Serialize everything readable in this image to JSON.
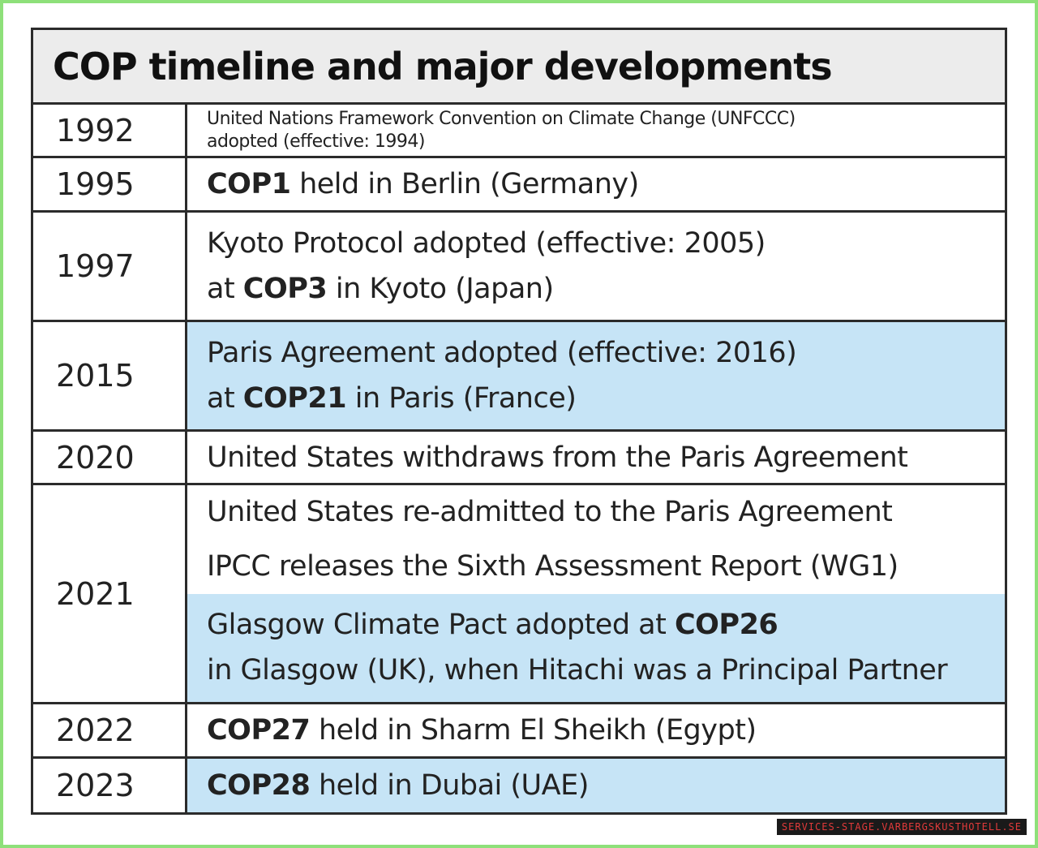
{
  "title": "COP timeline and major developments",
  "rows": [
    {
      "year": "1992",
      "events": [
        {
          "highlight": false,
          "size": "small",
          "lines": [
            {
              "pre": "United Nations Framework Convention on Climate Change (UNFCCC)",
              "bold": "",
              "post": ""
            },
            {
              "pre": "adopted (effective: 1994)",
              "bold": "",
              "post": ""
            }
          ]
        }
      ]
    },
    {
      "year": "1995",
      "events": [
        {
          "highlight": false,
          "size": "large",
          "lines": [
            {
              "pre": "",
              "bold": "COP1",
              "post": " held in Berlin (Germany)"
            }
          ]
        }
      ]
    },
    {
      "year": "1997",
      "events": [
        {
          "highlight": false,
          "size": "large",
          "lines": [
            {
              "pre": "Kyoto Protocol adopted (effective: 2005)",
              "bold": "",
              "post": ""
            },
            {
              "pre": "at ",
              "bold": "COP3",
              "post": " in Kyoto (Japan)"
            }
          ]
        }
      ]
    },
    {
      "year": "2015",
      "events": [
        {
          "highlight": true,
          "size": "large",
          "lines": [
            {
              "pre": "Paris Agreement adopted (effective: 2016)",
              "bold": "",
              "post": ""
            },
            {
              "pre": "at ",
              "bold": "COP21",
              "post": " in Paris (France)"
            }
          ]
        }
      ]
    },
    {
      "year": "2020",
      "events": [
        {
          "highlight": false,
          "size": "large",
          "lines": [
            {
              "pre": "United States withdraws from the Paris Agreement",
              "bold": "",
              "post": ""
            }
          ]
        }
      ]
    },
    {
      "year": "2021",
      "events": [
        {
          "highlight": false,
          "size": "large",
          "lines": [
            {
              "pre": "United States re-admitted to the Paris Agreement",
              "bold": "",
              "post": ""
            }
          ]
        },
        {
          "highlight": false,
          "size": "large",
          "lines": [
            {
              "pre": "IPCC releases the Sixth Assessment Report (WG1)",
              "bold": "",
              "post": ""
            }
          ]
        },
        {
          "highlight": true,
          "size": "large",
          "lines": [
            {
              "pre": "Glasgow Climate Pact adopted at ",
              "bold": "COP26",
              "post": ""
            },
            {
              "pre": "in Glasgow (UK), when Hitachi was a Principal Partner",
              "bold": "",
              "post": ""
            }
          ]
        }
      ]
    },
    {
      "year": "2022",
      "events": [
        {
          "highlight": false,
          "size": "large",
          "lines": [
            {
              "pre": "",
              "bold": "COP27",
              "post": " held in Sharm El Sheikh (Egypt)"
            }
          ]
        }
      ]
    },
    {
      "year": "2023",
      "events": [
        {
          "highlight": true,
          "size": "large",
          "lines": [
            {
              "pre": "",
              "bold": "COP28",
              "post": " held in Dubai (UAE)"
            }
          ]
        }
      ]
    }
  ],
  "watermark": "SERVICES-STAGE.VARBERGSKUSTHOTELL.SE",
  "colors": {
    "highlight": "#c6e4f6",
    "border": "#2b2b2b",
    "title_bg": "#ececec",
    "frame": "#8ee07a"
  }
}
